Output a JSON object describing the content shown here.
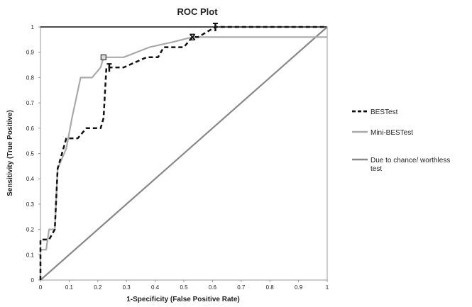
{
  "chart_data": {
    "type": "line",
    "title": "ROC Plot",
    "xlabel": "1-Specificity (False Positive Rate)",
    "ylabel": "Sensitivity (True Positive)",
    "xlim": [
      0,
      1
    ],
    "ylim": [
      0,
      1
    ],
    "xticks": [
      "0",
      "0.1",
      "0.2",
      "0.3",
      "0.4",
      "0.5",
      "0.6",
      "0.7",
      "0.8",
      "0.9",
      "1"
    ],
    "yticks": [
      "0",
      "0.1",
      "0.2",
      "0.3",
      "0.4",
      "0.5",
      "0.6",
      "0.7",
      "0.8",
      "0.9",
      "1"
    ],
    "grid": false,
    "legend_position": "right",
    "series": [
      {
        "name": "BESTest",
        "style": "dashed",
        "color": "#111111",
        "x": [
          0,
          0,
          0.03,
          0.05,
          0.06,
          0.07,
          0.09,
          0.13,
          0.16,
          0.21,
          0.22,
          0.23,
          0.24,
          0.29,
          0.37,
          0.41,
          0.43,
          0.5,
          0.53,
          0.55,
          0.61,
          1
        ],
        "y": [
          0,
          0.16,
          0.16,
          0.2,
          0.44,
          0.48,
          0.56,
          0.56,
          0.6,
          0.6,
          0.64,
          0.84,
          0.84,
          0.84,
          0.88,
          0.88,
          0.92,
          0.92,
          0.96,
          0.96,
          1,
          1
        ]
      },
      {
        "name": "Mini-BESTest",
        "style": "solid",
        "color": "#aaaaaa",
        "x": [
          0,
          0,
          0.02,
          0.03,
          0.05,
          0.06,
          0.09,
          0.11,
          0.14,
          0.18,
          0.21,
          0.22,
          0.29,
          0.38,
          0.46,
          0.53,
          0.6,
          1
        ],
        "y": [
          0,
          0.12,
          0.12,
          0.2,
          0.2,
          0.44,
          0.52,
          0.64,
          0.8,
          0.8,
          0.84,
          0.88,
          0.88,
          0.92,
          0.94,
          0.96,
          0.96,
          0.96
        ]
      },
      {
        "name": "Due to chance/ worthless test",
        "style": "solid",
        "color": "#888888",
        "x": [
          0,
          1
        ],
        "y": [
          0,
          1
        ]
      }
    ],
    "markers": [
      {
        "series": "Mini-BESTest",
        "x": 0.22,
        "y": 0.88,
        "shape": "square"
      },
      {
        "series": "BESTest",
        "x": 0.24,
        "y": 0.84,
        "shape": "bar"
      },
      {
        "series": "BESTest",
        "x": 0.53,
        "y": 0.96,
        "shape": "x"
      },
      {
        "series": "BESTest",
        "x": 0.61,
        "y": 1,
        "shape": "bar"
      }
    ]
  }
}
